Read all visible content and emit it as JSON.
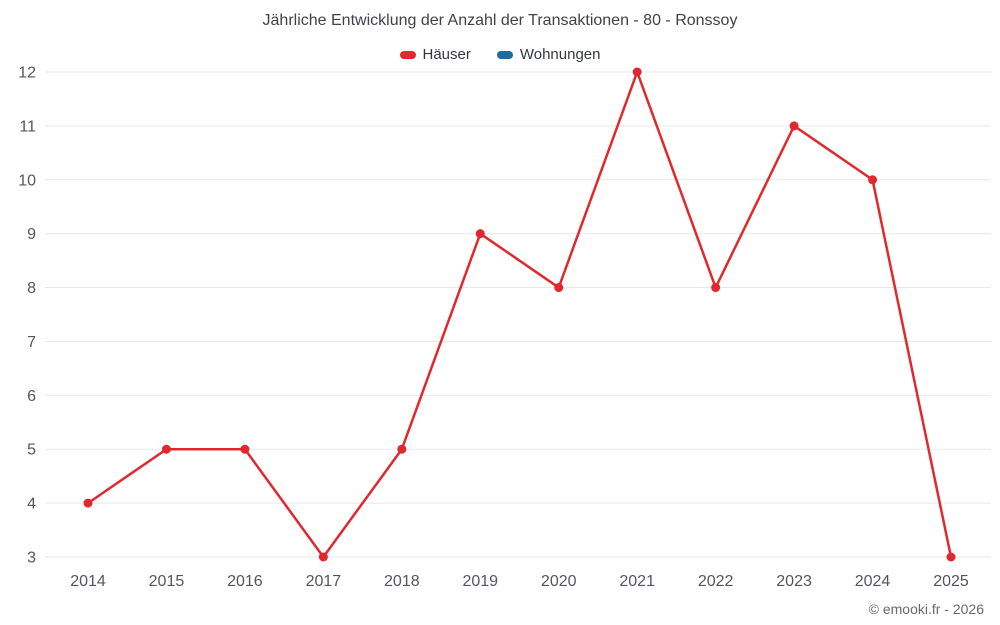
{
  "header": {
    "title": "Jährliche Entwicklung der Anzahl der Transaktionen - 80 - Ronssoy"
  },
  "legend": {
    "items": [
      {
        "label": "Häuser",
        "color": "#e0282e"
      },
      {
        "label": "Wohnungen",
        "color": "#1a6d9e"
      }
    ]
  },
  "footer": {
    "copyright": "© emooki.fr - 2026"
  },
  "chart_data": {
    "type": "line",
    "title": "Jährliche Entwicklung der Anzahl der Transaktionen - 80 - Ronssoy",
    "categories": [
      "2014",
      "2015",
      "2016",
      "2017",
      "2018",
      "2019",
      "2020",
      "2021",
      "2022",
      "2023",
      "2024",
      "2025"
    ],
    "series": [
      {
        "name": "Häuser",
        "color": "#e0282e",
        "values": [
          4,
          5,
          5,
          3,
          5,
          9,
          8,
          12,
          8,
          11,
          10,
          3
        ]
      },
      {
        "name": "Wohnungen",
        "color": "#1a6d9e",
        "values": []
      }
    ],
    "xlabel": "",
    "ylabel": "",
    "ylim": [
      3,
      12
    ],
    "ytick_step": 1,
    "grid": true,
    "legend_position": "top",
    "marker_radius": 4.5,
    "line_width": 2.5
  }
}
